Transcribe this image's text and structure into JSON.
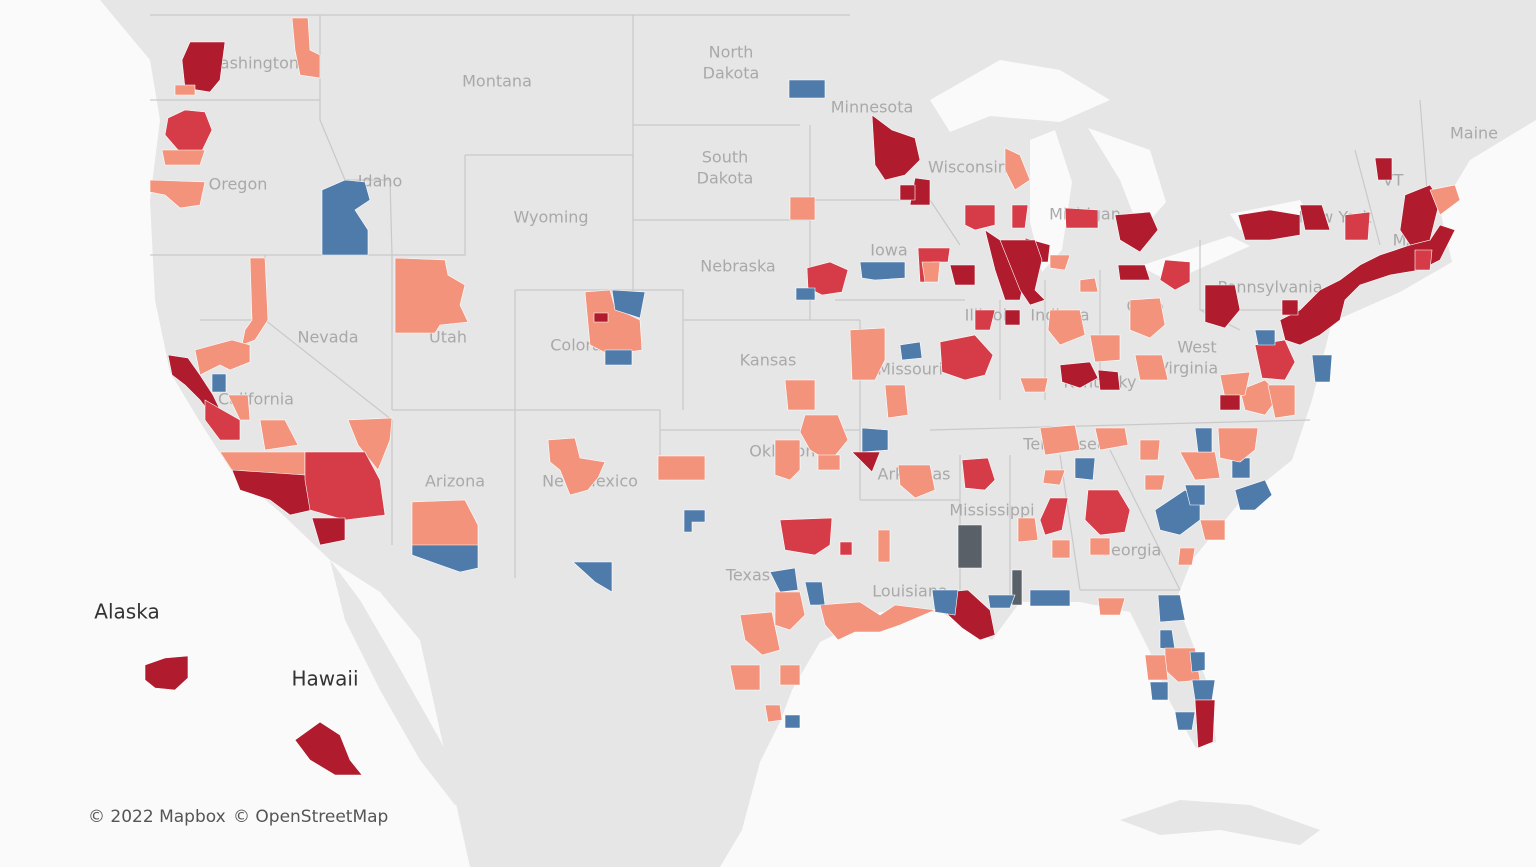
{
  "map": {
    "state_labels": [
      "Washington",
      "Montana",
      "North",
      "Dakota",
      "Minnesota",
      "South",
      "Dakota",
      "Wisconsin",
      "Idaho",
      "Oregon",
      "Wyoming",
      "Iowa",
      "Nebraska",
      "Nevada",
      "Utah",
      "Colorado",
      "Kansas",
      "Missouri",
      "California",
      "Arizona",
      "New Mexico",
      "Oklahoma",
      "Arkansas",
      "Texas",
      "Louisiana",
      "Mississippi",
      "Tennessee",
      "Kentucky",
      "Georgia",
      "Illinois",
      "Indiana",
      "Ohio",
      "Michigan",
      "Pennsylvania",
      "West",
      "Virginia",
      "New York",
      "Maine",
      "MA",
      "VT"
    ],
    "insets": [
      "Alaska",
      "Hawaii"
    ],
    "attribution": [
      "© 2022 Mapbox",
      "© OpenStreetMap"
    ]
  }
}
